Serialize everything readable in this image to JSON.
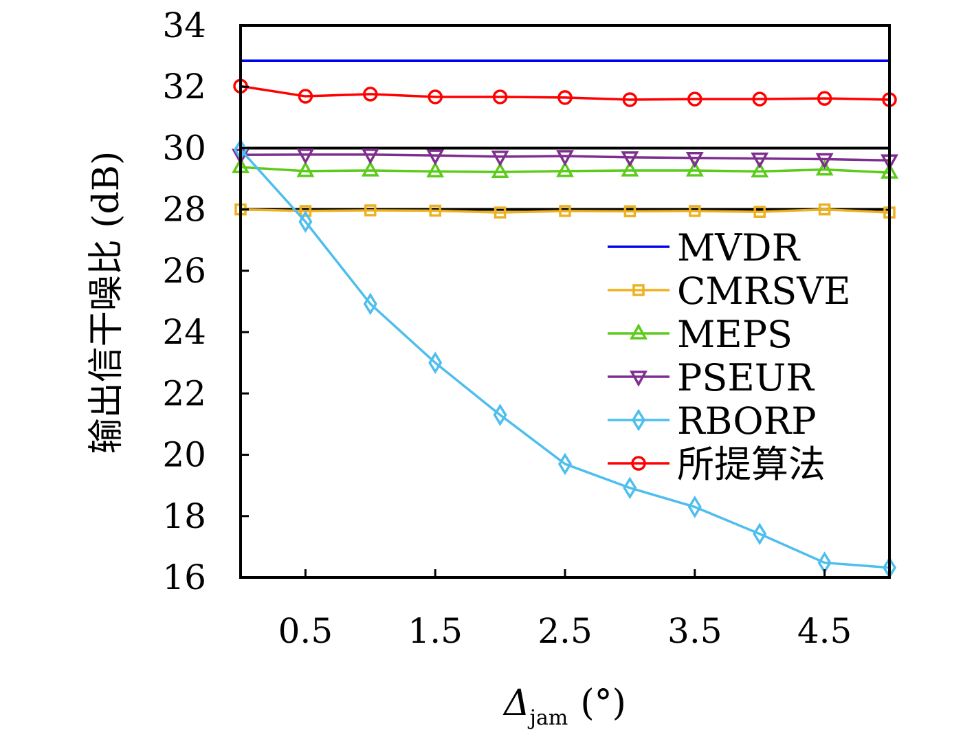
{
  "chart_data": {
    "type": "line",
    "title": "",
    "xlabel": {
      "symbol": "Δ",
      "subscript": "jam",
      "unit": "(°)"
    },
    "ylabel": "输出信干噪比 (dB)",
    "xlim": [
      0,
      5
    ],
    "ylim": [
      16,
      34
    ],
    "xticks": [
      0.5,
      1.5,
      2.5,
      3.5,
      4.5
    ],
    "xtick_labels": [
      "0.5",
      "1.5",
      "2.5",
      "3.5",
      "4.5"
    ],
    "yticks": [
      16,
      18,
      20,
      22,
      24,
      26,
      28,
      30,
      32,
      34
    ],
    "ytick_labels": [
      "16",
      "18",
      "20",
      "22",
      "24",
      "26",
      "28",
      "30",
      "32",
      "34"
    ],
    "grid": false,
    "legend_position": "center-right",
    "reference_lines": [
      30,
      28
    ],
    "x": [
      0,
      0.5,
      1,
      1.5,
      2,
      2.5,
      3,
      3.5,
      4,
      4.5,
      5
    ],
    "series": [
      {
        "name": "MVDR",
        "color": "#0000EE",
        "marker": "none",
        "values": [
          32.85,
          32.85,
          32.85,
          32.85,
          32.85,
          32.85,
          32.85,
          32.85,
          32.85,
          32.85,
          32.85
        ]
      },
      {
        "name": "CMRSVE",
        "color": "#EDB120",
        "marker": "square",
        "values": [
          28.0,
          27.95,
          27.97,
          27.96,
          27.9,
          27.95,
          27.94,
          27.95,
          27.92,
          28.0,
          27.9
        ]
      },
      {
        "name": "MEPS",
        "color": "#5CCB1B",
        "marker": "triangle-up",
        "values": [
          29.38,
          29.25,
          29.27,
          29.24,
          29.22,
          29.25,
          29.27,
          29.27,
          29.24,
          29.3,
          29.2
        ]
      },
      {
        "name": "PSEUR",
        "color": "#7E2F8E",
        "marker": "triangle-down",
        "values": [
          29.78,
          29.79,
          29.79,
          29.76,
          29.72,
          29.74,
          29.7,
          29.68,
          29.66,
          29.64,
          29.6
        ]
      },
      {
        "name": "RBORP",
        "color": "#4DBEEE",
        "marker": "diamond",
        "values": [
          29.95,
          27.6,
          24.92,
          23.0,
          21.3,
          19.7,
          18.92,
          18.3,
          17.42,
          16.48,
          16.32
        ]
      },
      {
        "name": "所提算法",
        "color": "#FF0000",
        "marker": "circle",
        "values": [
          32.02,
          31.69,
          31.76,
          31.67,
          31.67,
          31.65,
          31.58,
          31.6,
          31.6,
          31.62,
          31.58
        ]
      }
    ]
  }
}
